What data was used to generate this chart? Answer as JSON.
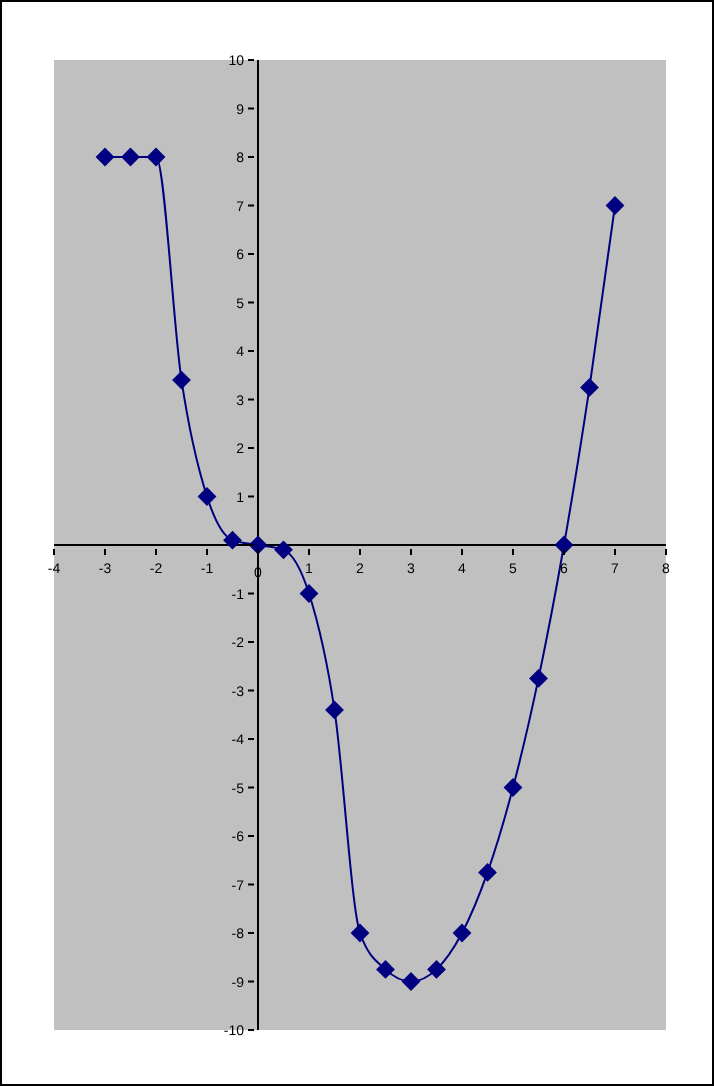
{
  "chart_data": {
    "type": "line",
    "x": [
      -3,
      -2.5,
      -2,
      -1.5,
      -1,
      -0.5,
      0,
      0.5,
      1,
      1.5,
      2,
      2.5,
      3,
      3.5,
      4,
      4.5,
      5,
      5.5,
      6,
      6.5,
      7
    ],
    "series": [
      {
        "color": "#000080",
        "values": [
          8,
          8,
          8,
          3.4,
          1,
          0.1,
          0,
          -0.1,
          -1,
          -3.4,
          -8,
          -8.75,
          -9,
          -8.75,
          -8,
          -6.75,
          -5,
          -2.75,
          0,
          3.25,
          7
        ]
      }
    ],
    "xlim": [
      -4,
      8
    ],
    "xticks": [
      -4,
      -3,
      -2,
      -1,
      0,
      1,
      2,
      3,
      4,
      5,
      6,
      7,
      8
    ],
    "ylim": [
      -10,
      10
    ],
    "yticks": [
      -10,
      -9,
      -8,
      -7,
      -6,
      -5,
      -4,
      -3,
      -2,
      -1,
      {
        "value": 0,
        "label": null
      },
      1,
      2,
      3,
      4,
      5,
      6,
      7,
      8,
      9,
      10
    ],
    "grid": false,
    "legend": false,
    "marker": "diamond",
    "line_style": "solid"
  }
}
